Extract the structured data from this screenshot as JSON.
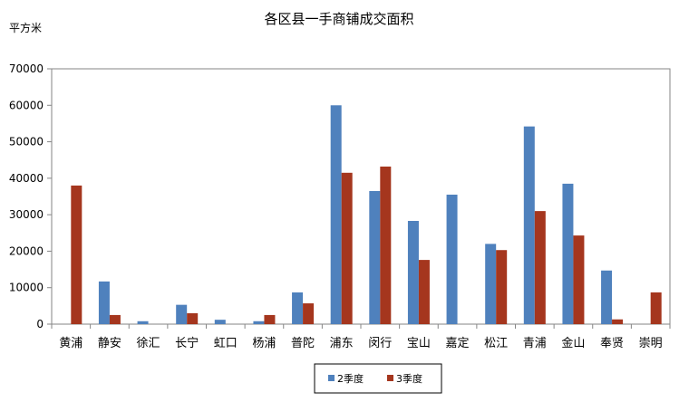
{
  "chart_data": {
    "type": "bar",
    "title": "各区县一手商铺成交面积",
    "ylabel": "平方米",
    "xlabel": "",
    "ylim": [
      0,
      70000
    ],
    "yticks": [
      0,
      10000,
      20000,
      30000,
      40000,
      50000,
      60000,
      70000
    ],
    "grid": false,
    "legend_position": "bottom",
    "categories": [
      "黄浦",
      "静安",
      "徐汇",
      "长宁",
      "虹口",
      "杨浦",
      "普陀",
      "浦东",
      "闵行",
      "宝山",
      "嘉定",
      "松江",
      "青浦",
      "金山",
      "奉贤",
      "崇明"
    ],
    "series": [
      {
        "name": "2季度",
        "color": "#4F81BD",
        "values": [
          0,
          11700,
          800,
          5300,
          1200,
          800,
          8700,
          60000,
          36500,
          28300,
          35500,
          22000,
          54200,
          38500,
          14700,
          0
        ]
      },
      {
        "name": "3季度",
        "color": "#A5361E",
        "values": [
          38000,
          2500,
          0,
          3000,
          0,
          2500,
          5700,
          41500,
          43200,
          17600,
          0,
          20300,
          31000,
          24300,
          1300,
          8700
        ]
      }
    ]
  }
}
